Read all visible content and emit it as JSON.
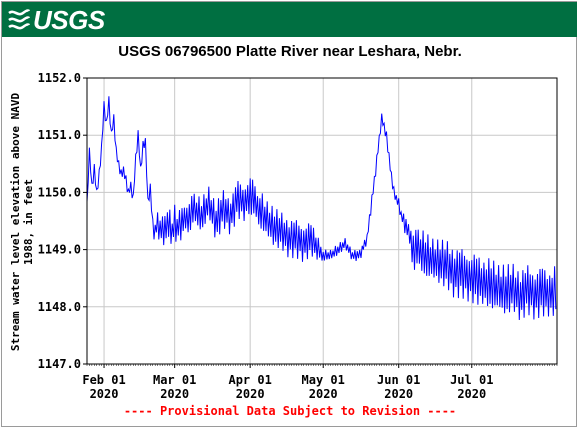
{
  "header": {
    "logo_text": "USGS",
    "logo_icon": "usgs-wave-icon",
    "banner_color": "#006f41"
  },
  "chart_data": {
    "type": "line",
    "title": "USGS 06796500 Platte River near Leshara, Nebr.",
    "xlabel": "",
    "ylabel": "Stream water level elevation above NAVD 1988, in feet",
    "ylim": [
      1147.0,
      1152.0
    ],
    "xlim": [
      "2020-01-25",
      "2020-08-05"
    ],
    "grid": true,
    "line_color": "#0000ff",
    "yticks": [
      "1147.0",
      "1148.0",
      "1149.0",
      "1150.0",
      "1151.0",
      "1152.0"
    ],
    "xticks": [
      {
        "date": "2020-02-01",
        "line1": "Feb 01",
        "line2": "2020"
      },
      {
        "date": "2020-03-01",
        "line1": "Mar 01",
        "line2": "2020"
      },
      {
        "date": "2020-04-01",
        "line1": "Apr 01",
        "line2": "2020"
      },
      {
        "date": "2020-05-01",
        "line1": "May 01",
        "line2": "2020"
      },
      {
        "date": "2020-06-01",
        "line1": "Jun 01",
        "line2": "2020"
      },
      {
        "date": "2020-07-01",
        "line1": "Jul 01",
        "line2": "2020"
      }
    ],
    "series": [
      {
        "x": [
          "2020-01-25",
          "2020-01-26",
          "2020-01-27",
          "2020-01-28",
          "2020-01-29",
          "2020-01-30",
          "2020-01-31",
          "2020-02-01",
          "2020-02-02",
          "2020-02-03",
          "2020-02-04",
          "2020-02-05",
          "2020-02-06",
          "2020-02-07",
          "2020-02-08",
          "2020-02-09",
          "2020-02-10",
          "2020-02-11",
          "2020-02-12",
          "2020-02-13",
          "2020-02-14",
          "2020-02-15",
          "2020-02-16",
          "2020-02-17",
          "2020-02-18",
          "2020-02-19",
          "2020-02-20",
          "2020-02-21",
          "2020-02-22",
          "2020-02-23",
          "2020-02-24",
          "2020-02-25",
          "2020-02-26",
          "2020-02-27",
          "2020-02-28",
          "2020-02-29",
          "2020-03-01",
          "2020-03-02",
          "2020-03-03",
          "2020-03-05",
          "2020-03-07",
          "2020-03-09",
          "2020-03-12",
          "2020-03-15",
          "2020-03-18",
          "2020-03-21",
          "2020-03-24",
          "2020-03-27",
          "2020-03-30",
          "2020-04-01",
          "2020-04-03",
          "2020-04-05",
          "2020-04-08",
          "2020-04-11",
          "2020-04-14",
          "2020-04-17",
          "2020-04-20",
          "2020-04-23",
          "2020-04-26",
          "2020-04-29",
          "2020-05-01",
          "2020-05-04",
          "2020-05-07",
          "2020-05-10",
          "2020-05-13",
          "2020-05-16",
          "2020-05-19",
          "2020-05-22",
          "2020-05-25",
          "2020-05-27",
          "2020-05-28",
          "2020-05-29",
          "2020-05-30",
          "2020-05-31",
          "2020-06-01",
          "2020-06-02",
          "2020-06-03",
          "2020-06-05",
          "2020-06-07",
          "2020-06-09",
          "2020-06-12",
          "2020-06-15",
          "2020-06-18",
          "2020-06-21",
          "2020-06-24",
          "2020-06-27",
          "2020-06-30",
          "2020-07-03",
          "2020-07-06",
          "2020-07-09",
          "2020-07-12",
          "2020-07-15",
          "2020-07-18",
          "2020-07-21",
          "2020-07-24",
          "2020-07-27",
          "2020-07-30",
          "2020-08-02",
          "2020-08-05"
        ],
        "y": [
          1149.8,
          1150.7,
          1150.1,
          1150.4,
          1150.0,
          1150.3,
          1150.8,
          1151.5,
          1151.2,
          1151.6,
          1151.0,
          1151.3,
          1150.7,
          1150.5,
          1150.3,
          1150.4,
          1150.2,
          1150.0,
          1150.1,
          1149.9,
          1150.6,
          1151.0,
          1150.4,
          1150.8,
          1150.9,
          1149.8,
          1150.1,
          1149.4,
          1149.3,
          1149.5,
          1149.3,
          1149.4,
          1149.3,
          1149.5,
          1149.4,
          1149.3,
          1149.5,
          1149.35,
          1149.45,
          1149.5,
          1149.6,
          1149.7,
          1149.6,
          1149.8,
          1149.5,
          1149.7,
          1149.6,
          1149.9,
          1149.8,
          1150.0,
          1149.8,
          1149.7,
          1149.5,
          1149.4,
          1149.3,
          1149.2,
          1149.2,
          1149.1,
          1149.2,
          1149.0,
          1148.9,
          1148.9,
          1149.0,
          1149.1,
          1148.9,
          1148.9,
          1149.2,
          1150.2,
          1151.3,
          1151.0,
          1150.6,
          1150.3,
          1150.0,
          1149.9,
          1149.8,
          1149.6,
          1149.5,
          1149.3,
          1149.0,
          1149.0,
          1148.9,
          1148.8,
          1148.8,
          1148.7,
          1148.6,
          1148.6,
          1148.5,
          1148.5,
          1148.4,
          1148.4,
          1148.3,
          1148.3,
          1148.3,
          1148.2,
          1148.3,
          1148.2,
          1148.3,
          1148.2,
          1148.3
        ],
        "amplitude": [
          0.05,
          0.1,
          0.1,
          0.1,
          0.1,
          0.1,
          0.1,
          0.1,
          0.1,
          0.1,
          0.1,
          0.1,
          0.1,
          0.1,
          0.1,
          0.1,
          0.1,
          0.1,
          0.1,
          0.1,
          0.1,
          0.1,
          0.1,
          0.1,
          0.1,
          0.1,
          0.1,
          0.15,
          0.2,
          0.2,
          0.25,
          0.3,
          0.3,
          0.3,
          0.3,
          0.3,
          0.3,
          0.3,
          0.3,
          0.3,
          0.3,
          0.3,
          0.3,
          0.3,
          0.35,
          0.35,
          0.35,
          0.35,
          0.35,
          0.35,
          0.35,
          0.35,
          0.35,
          0.35,
          0.35,
          0.35,
          0.35,
          0.35,
          0.3,
          0.25,
          0.1,
          0.1,
          0.1,
          0.1,
          0.1,
          0.1,
          0.1,
          0.1,
          0.1,
          0.1,
          0.1,
          0.1,
          0.1,
          0.1,
          0.1,
          0.1,
          0.15,
          0.2,
          0.35,
          0.4,
          0.4,
          0.4,
          0.4,
          0.45,
          0.45,
          0.45,
          0.45,
          0.45,
          0.45,
          0.45,
          0.45,
          0.45,
          0.45,
          0.45,
          0.45,
          0.45,
          0.45,
          0.45,
          0.45
        ]
      }
    ]
  },
  "footnote": "---- Provisional Data Subject to Revision ----"
}
